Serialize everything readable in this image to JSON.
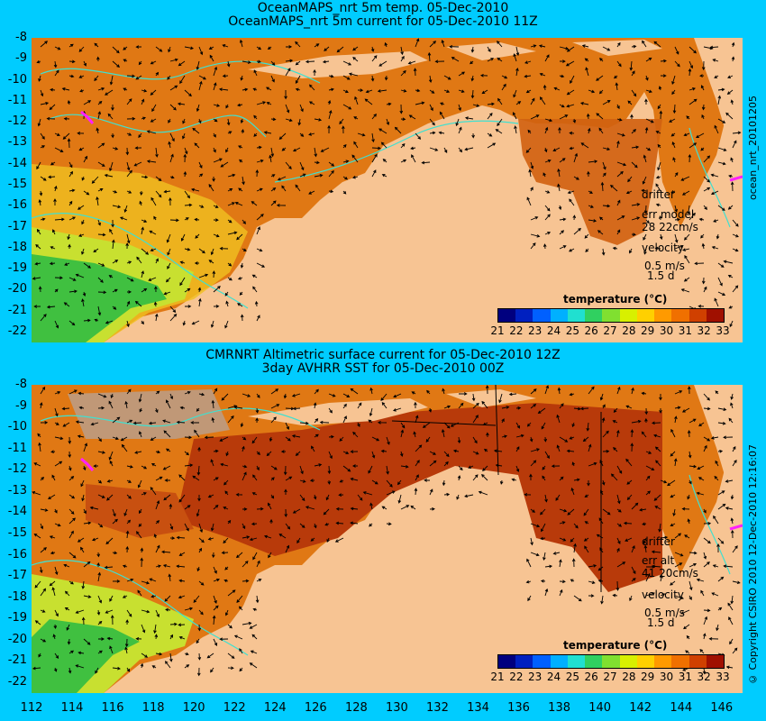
{
  "panel1": {
    "title_line1": "OceanMAPS_nrt 5m temp. 05-Dec-2010",
    "title_line2": "OceanMAPS_nrt 5m current for 05-Dec-2010 11Z",
    "side_label": "ocean_nrt_20101205",
    "drifter_label": "drifter",
    "err_label": "err model",
    "err_values": "28 22cm/s",
    "velocity_label": "velocity",
    "velocity_scale": "0.5 m/s",
    "velocity_time": "1.5 d"
  },
  "panel2": {
    "title_line1": "CMRNRT Altimetric surface current for 05-Dec-2010 12Z",
    "title_line2": "3day AVHRR SST for 05-Dec-2010 00Z",
    "side_label": "© Copyright CSIRO 2010  12-Dec-2010 12:16:07",
    "drifter_label": "drifter",
    "err_label": "err alt",
    "err_values": "41 20cm/s",
    "velocity_label": "velocity",
    "velocity_scale": "0.5 m/s",
    "velocity_time": "1.5 d"
  },
  "legend": {
    "title": "temperature (°C)",
    "ticks": [
      "21",
      "22",
      "23",
      "24",
      "25",
      "26",
      "27",
      "28",
      "29",
      "30",
      "31",
      "32",
      "33"
    ],
    "colors": [
      "#00007f",
      "#0020c0",
      "#0060ff",
      "#00b0ff",
      "#20e0d0",
      "#30d060",
      "#80e030",
      "#d8f000",
      "#ffd000",
      "#ff9a00",
      "#f07000",
      "#d04000",
      "#a01000"
    ]
  },
  "axes": {
    "lat_ticks": [
      "-8",
      "-9",
      "-10",
      "-11",
      "-12",
      "-13",
      "-14",
      "-15",
      "-16",
      "-17",
      "-18",
      "-19",
      "-20",
      "-21",
      "-22"
    ],
    "lon_ticks": [
      "112",
      "114",
      "116",
      "118",
      "120",
      "122",
      "124",
      "126",
      "128",
      "130",
      "132",
      "134",
      "136",
      "138",
      "140",
      "142",
      "144",
      "146"
    ]
  },
  "colors": {
    "background": "#00ccff",
    "land": "#f7c493",
    "ocean_warm": "#e07814",
    "ocean_hot": "#b83a0a",
    "ocean_cool": "#c8e030",
    "green": "#40c040",
    "contour": "#40e0d0",
    "drifter": "#ff20ff"
  }
}
